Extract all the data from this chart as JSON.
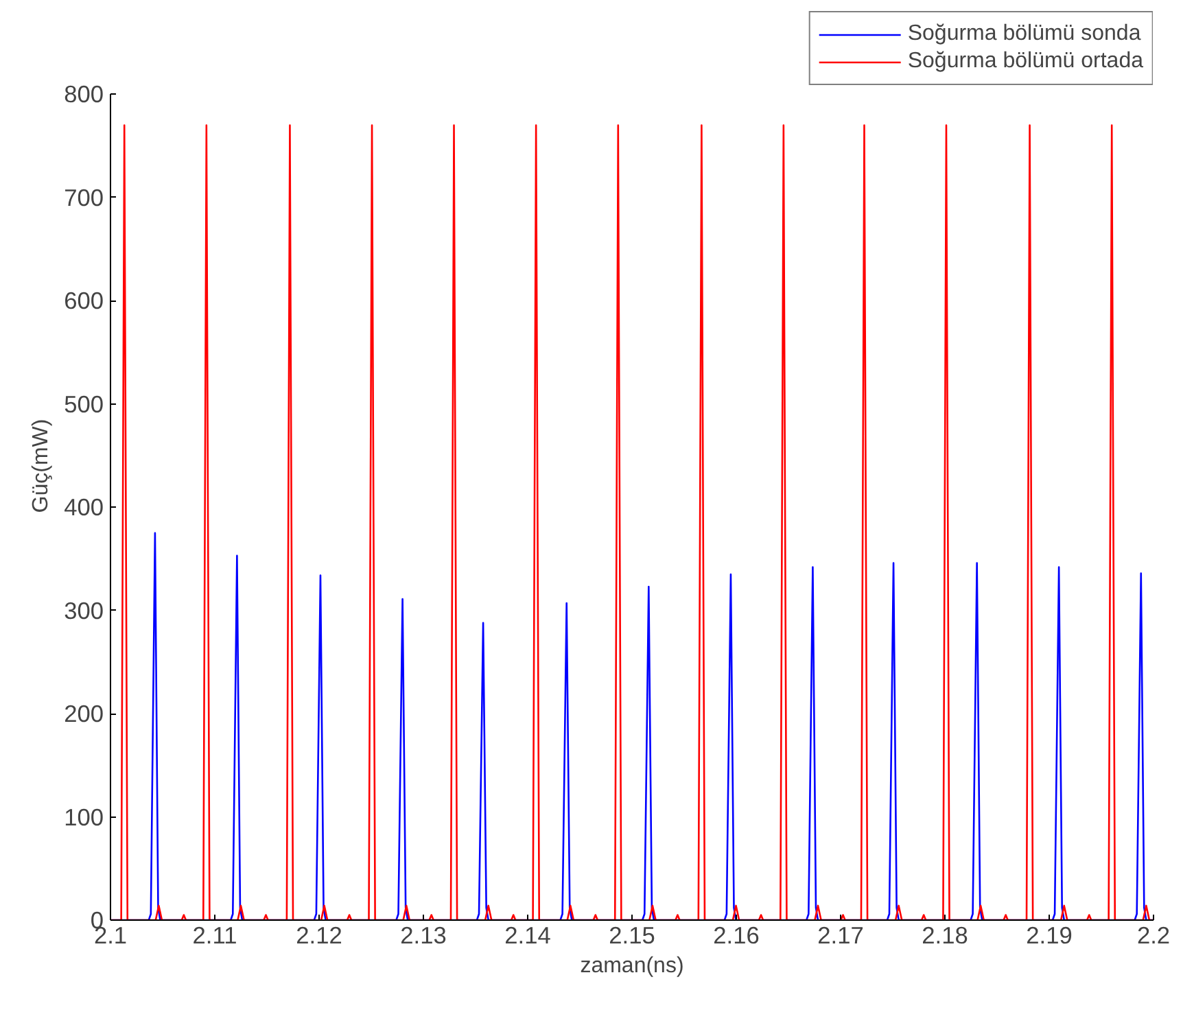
{
  "chart_data": {
    "type": "line",
    "xlabel": "zaman(ns)",
    "ylabel": "Güç(mW)",
    "xlim": [
      2.1,
      2.2
    ],
    "ylim": [
      0,
      800
    ],
    "xticks": [
      2.1,
      2.11,
      2.12,
      2.13,
      2.14,
      2.15,
      2.16,
      2.17,
      2.18,
      2.19,
      2.2
    ],
    "yticks": [
      0,
      100,
      200,
      300,
      400,
      500,
      600,
      700,
      800
    ],
    "grid": false,
    "legend": "top right",
    "marker": "none",
    "line_style": "solid",
    "series": [
      {
        "name": "Soğurma bölümü sonda",
        "color": "#0000ff",
        "x": [
          2.1,
          2.10367,
          2.10387,
          2.10427,
          2.10457,
          2.10477,
          2.11153,
          2.11173,
          2.11213,
          2.11243,
          2.11263,
          2.11953,
          2.11973,
          2.12013,
          2.12043,
          2.12063,
          2.1274,
          2.1276,
          2.128,
          2.1283,
          2.1285,
          2.13513,
          2.13533,
          2.13573,
          2.13603,
          2.13623,
          2.14313,
          2.14333,
          2.14373,
          2.14403,
          2.14423,
          2.151,
          2.1512,
          2.1516,
          2.1519,
          2.1521,
          2.15887,
          2.15907,
          2.15947,
          2.15977,
          2.15997,
          2.16673,
          2.16693,
          2.16733,
          2.16763,
          2.16783,
          2.17447,
          2.17467,
          2.17507,
          2.17537,
          2.17557,
          2.18247,
          2.18267,
          2.18307,
          2.18337,
          2.18357,
          2.19033,
          2.19053,
          2.19093,
          2.19123,
          2.19143,
          2.1982,
          2.1984,
          2.1988,
          2.1991,
          2.1993,
          2.2
        ],
        "values": [
          0,
          0,
          6,
          375,
          12,
          0,
          0,
          6,
          353,
          12,
          0,
          0,
          6,
          334,
          12,
          0,
          0,
          6,
          311,
          12,
          0,
          0,
          6,
          288,
          12,
          0,
          0,
          6,
          307,
          12,
          0,
          0,
          6,
          323,
          12,
          0,
          0,
          6,
          335,
          12,
          0,
          0,
          6,
          342,
          12,
          0,
          0,
          6,
          346,
          12,
          0,
          0,
          6,
          346,
          12,
          0,
          0,
          6,
          342,
          12,
          0,
          0,
          6,
          336,
          12,
          0,
          0
        ]
      },
      {
        "name": "Soğurma bölümü ortada",
        "color": "#ff0000",
        "x": [
          2.1,
          2.10103,
          2.10133,
          2.10163,
          2.10433,
          2.10463,
          2.10493,
          2.10683,
          2.10703,
          2.10723,
          2.1089,
          2.1092,
          2.1095,
          2.1122,
          2.1125,
          2.1128,
          2.1147,
          2.1149,
          2.1151,
          2.1169,
          2.1172,
          2.1175,
          2.1202,
          2.1205,
          2.1208,
          2.1227,
          2.1229,
          2.1231,
          2.12477,
          2.12507,
          2.12537,
          2.12807,
          2.12837,
          2.12867,
          2.13057,
          2.13077,
          2.13097,
          2.13263,
          2.13293,
          2.13323,
          2.13593,
          2.13623,
          2.13653,
          2.13843,
          2.13863,
          2.13883,
          2.1405,
          2.1408,
          2.1411,
          2.1438,
          2.1441,
          2.1444,
          2.1463,
          2.1465,
          2.1467,
          2.14837,
          2.14867,
          2.14897,
          2.15167,
          2.15197,
          2.15227,
          2.15417,
          2.15437,
          2.15457,
          2.15637,
          2.15667,
          2.15697,
          2.15967,
          2.15997,
          2.16027,
          2.16217,
          2.16237,
          2.16257,
          2.16423,
          2.16453,
          2.16483,
          2.16753,
          2.16783,
          2.16813,
          2.17003,
          2.17023,
          2.17043,
          2.17197,
          2.17227,
          2.17257,
          2.17527,
          2.17557,
          2.17587,
          2.17777,
          2.17797,
          2.17817,
          2.17983,
          2.18013,
          2.18043,
          2.18313,
          2.18343,
          2.18373,
          2.18563,
          2.18583,
          2.18603,
          2.18783,
          2.18813,
          2.18843,
          2.19113,
          2.19143,
          2.19173,
          2.19363,
          2.19383,
          2.19403,
          2.1957,
          2.196,
          2.1963,
          2.199,
          2.1993,
          2.1996,
          2.2
        ],
        "values": [
          0,
          0,
          770,
          0,
          0,
          14,
          0,
          0,
          5,
          0,
          0,
          770,
          0,
          0,
          14,
          0,
          0,
          5,
          0,
          0,
          770,
          0,
          0,
          14,
          0,
          0,
          5,
          0,
          0,
          770,
          0,
          0,
          14,
          0,
          0,
          5,
          0,
          0,
          770,
          0,
          0,
          14,
          0,
          0,
          5,
          0,
          0,
          770,
          0,
          0,
          14,
          0,
          0,
          5,
          0,
          0,
          770,
          0,
          0,
          14,
          0,
          0,
          5,
          0,
          0,
          770,
          0,
          0,
          14,
          0,
          0,
          5,
          0,
          0,
          770,
          0,
          0,
          14,
          0,
          0,
          5,
          0,
          0,
          770,
          0,
          0,
          14,
          0,
          0,
          5,
          0,
          0,
          770,
          0,
          0,
          14,
          0,
          0,
          5,
          0,
          0,
          770,
          0,
          0,
          14,
          0,
          0,
          5,
          0,
          0,
          770,
          0,
          0,
          14,
          0,
          0
        ]
      }
    ]
  }
}
